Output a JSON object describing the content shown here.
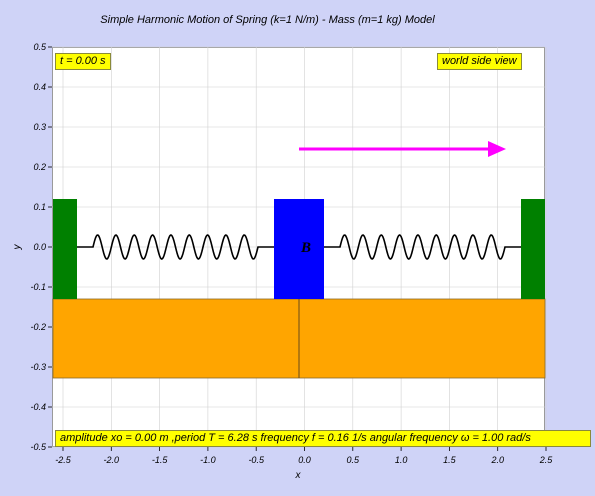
{
  "title": "Simple Harmonic Motion of Spring (k=1 N/m) - Mass (m=1 kg) Model",
  "time_label": "t = 0.00 s",
  "view_button": "world side view",
  "info_text": "amplitude xo = 0.00 m ,period T = 6.28 s frequency f = 0.16 1/s angular frequency ω = 1.00 rad/s",
  "mass_label": "B",
  "axes": {
    "xlabel": "x",
    "ylabel": "y",
    "x_ticks": [
      "-2.5",
      "-2.0",
      "-1.5",
      "-1.0",
      "-0.5",
      "0.0",
      "0.5",
      "1.0",
      "1.5",
      "2.0",
      "2.5"
    ],
    "y_ticks": [
      "0.5",
      "0.4",
      "0.3",
      "0.2",
      "0.1",
      "0.0",
      "-0.1",
      "-0.2",
      "-0.3",
      "-0.4",
      "-0.5"
    ]
  },
  "colors": {
    "wall": "#008000",
    "mass": "#0000ff",
    "floor": "#ffa500",
    "arrow": "#ff00ff",
    "label_bg": "#ffff00"
  }
}
